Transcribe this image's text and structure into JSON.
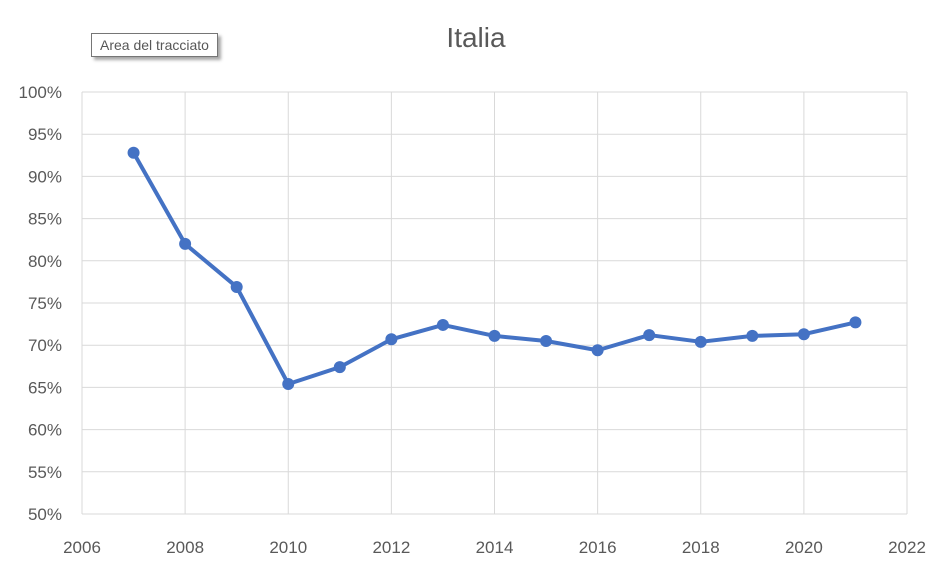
{
  "tooltip": "Area del tracciato",
  "colors": {
    "series": "#4472C4",
    "grid": "#D9D9D9"
  },
  "chart_data": {
    "type": "line",
    "title": "Italia",
    "xlabel": "",
    "ylabel": "",
    "xlim": [
      2006,
      2022
    ],
    "ylim": [
      0.5,
      1.0
    ],
    "xticks": [
      2006,
      2008,
      2010,
      2012,
      2014,
      2016,
      2018,
      2020,
      2022
    ],
    "yticks": [
      "50%",
      "55%",
      "60%",
      "65%",
      "70%",
      "75%",
      "80%",
      "85%",
      "90%",
      "95%",
      "100%"
    ],
    "grid": true,
    "legend": "none",
    "series": [
      {
        "name": "Italia",
        "x": [
          2007,
          2008,
          2009,
          2010,
          2011,
          2012,
          2013,
          2014,
          2015,
          2016,
          2017,
          2018,
          2019,
          2020,
          2021
        ],
        "values": [
          0.928,
          0.82,
          0.769,
          0.654,
          0.674,
          0.707,
          0.724,
          0.711,
          0.705,
          0.694,
          0.712,
          0.704,
          0.711,
          0.713,
          0.727
        ]
      }
    ]
  }
}
